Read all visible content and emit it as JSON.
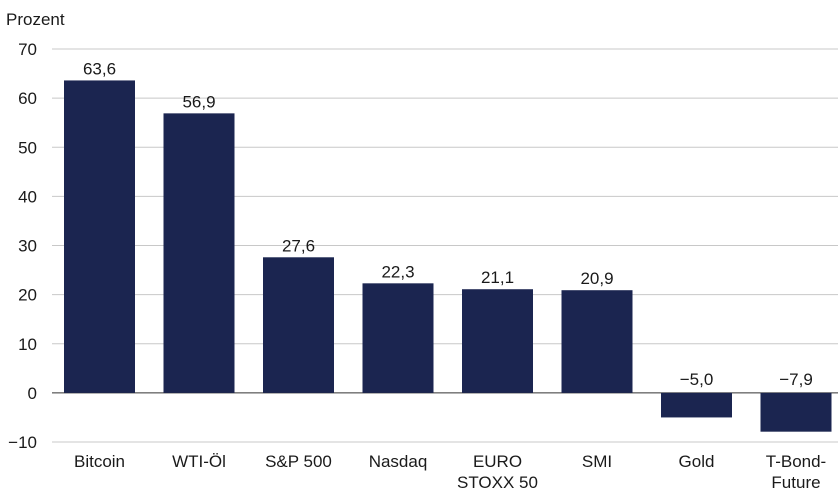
{
  "chart_data": {
    "type": "bar",
    "ylabel": "Prozent",
    "categories": [
      [
        "Bitcoin"
      ],
      [
        "WTI-Öl"
      ],
      [
        "S&P 500"
      ],
      [
        "Nasdaq"
      ],
      [
        "EURO",
        "STOXX 50"
      ],
      [
        "SMI"
      ],
      [
        "Gold"
      ],
      [
        "T-Bond-",
        "Future"
      ]
    ],
    "values": [
      63.6,
      56.9,
      27.6,
      22.3,
      21.1,
      20.9,
      -5.0,
      -7.9
    ],
    "value_labels": [
      "63,6",
      "56,9",
      "27,6",
      "22,3",
      "21,1",
      "20,9",
      "−5,0",
      "−7,9"
    ],
    "ylim": [
      -10,
      70
    ],
    "yticks": [
      70,
      60,
      50,
      40,
      30,
      20,
      10,
      0,
      -10
    ],
    "ytick_labels": [
      "70",
      "60",
      "50",
      "40",
      "30",
      "20",
      "10",
      "0",
      "−10"
    ],
    "grid": true,
    "colors": {
      "bar": "#1b2550",
      "grid": "#c8c8c8",
      "axis": "#333333"
    }
  }
}
